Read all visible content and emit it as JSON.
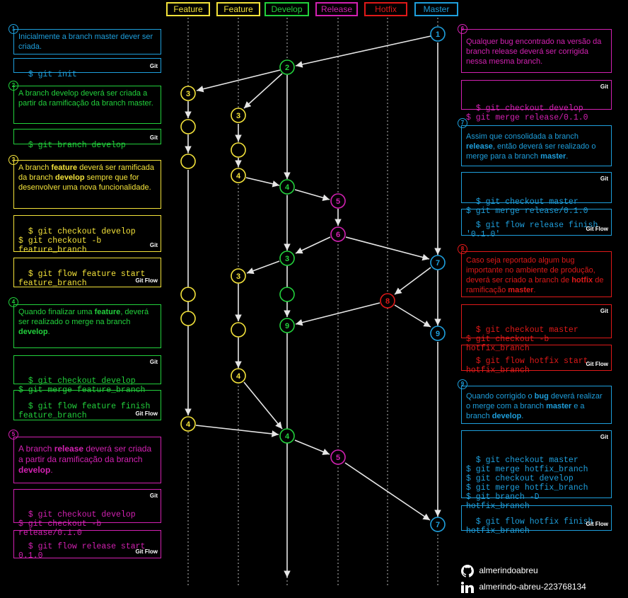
{
  "colors": {
    "feature": "#f3e23a",
    "develop": "#22d13c",
    "release": "#d321b2",
    "hotfix": "#e01919",
    "master": "#1e9fdc",
    "line": "#e6e6e6",
    "background": "#000000"
  },
  "headers": {
    "feature1": "Feature",
    "feature2": "Feature",
    "develop": "Develop",
    "release": "Release",
    "hotfix": "Hotfix",
    "master": "Master"
  },
  "steps": {
    "s1": {
      "num": "1",
      "text": "Inicialmente a branch master dever ser criada.",
      "code": "$ git init",
      "tag": "Git"
    },
    "s2": {
      "num": "2",
      "text": "A branch develop deverá ser criada a partir da ramificação da branch master.",
      "code": "$ git branch develop",
      "tag": "Git"
    },
    "s3": {
      "num": "3",
      "text_a": "A branch ",
      "text_b": "feature",
      "text_c": " deverá ser ramificada da branch ",
      "text_d": "develop",
      "text_e": " sempre que for desenvolver uma nova funcionalidade.",
      "code_git": "$ git checkout develop\n$ git checkout -b feature_branch",
      "tag_git": "Git",
      "code_flow": "$ git flow feature start feature_branch",
      "tag_flow": "Git Flow"
    },
    "s4": {
      "num": "4",
      "text_a": "Quando finalizar uma ",
      "text_b": "feature",
      "text_c": ", deverá ser realizado o merge na branch ",
      "text_d": "develop",
      "text_e": ".",
      "code_git": "$ git checkout develop\n$ git merge feature_branch",
      "tag_git": "Git",
      "code_flow": "$ git flow feature finish feature_branch",
      "tag_flow": "Git Flow"
    },
    "s5": {
      "num": "5",
      "text_a": "A branch ",
      "text_b": "release",
      "text_c": " deverá ser criada a partir da ramificação da branch ",
      "text_d": "develop",
      "text_e": ".",
      "code_git": "$ git checkout develop\n$ git checkout -b release/0.1.0",
      "tag_git": "Git",
      "code_flow": "$ git flow release start 0.1.0",
      "tag_flow": "Git Flow"
    },
    "s6": {
      "num": "6",
      "text": "Qualquer bug encontrado na versão da branch release deverá ser corrigida nessa mesma branch.",
      "code": "$ git checkout develop\n$ git merge release/0.1.0",
      "tag": "Git"
    },
    "s7": {
      "num": "7",
      "text_a": "Assim que consolidada a branch ",
      "text_b": "release",
      "text_c": ", então deverá ser realizado o merge para a branch ",
      "text_d": "master",
      "text_e": ".",
      "code_git": "$ git checkout master\n$ git merge release/0.1.0",
      "tag_git": "Git",
      "code_flow": "$ git flow release finish '0.1.0'",
      "tag_flow": "Git Flow"
    },
    "s8": {
      "num": "8",
      "text_a": "Caso seja reportado algum bug importante no ambiente de produção, deverá ser criado a branch de ",
      "text_b": "hotfix",
      "text_c": " de ramificação ",
      "text_d": "master",
      "text_e": ".",
      "code_git": "$ git checkout master\n$ git checkout -b hotfix_branch",
      "tag_git": "Git",
      "code_flow": "$ git flow hotfix start hotfix_branch",
      "tag_flow": "Git Flow"
    },
    "s9": {
      "num": "9",
      "text_a": "Quando corrigido o ",
      "text_b": "bug",
      "text_c": " deverá realizar o merge com a branch ",
      "text_d": "master",
      "text_e": " e a branch ",
      "text_f": "develop",
      "text_g": ".",
      "code_git": "$ git checkout master\n$ git merge hotfix_branch\n$ git checkout develop\n$ git merge hotfix_branch\n$ git branch -D hotfix_branch",
      "tag_git": "Git",
      "code_flow": "$ git flow hotfix finish hotfix_branch",
      "tag_flow": "Git Flow"
    }
  },
  "footer": {
    "github": "almerindoabreu",
    "linkedin": "almerindo-abreu-223768134"
  }
}
